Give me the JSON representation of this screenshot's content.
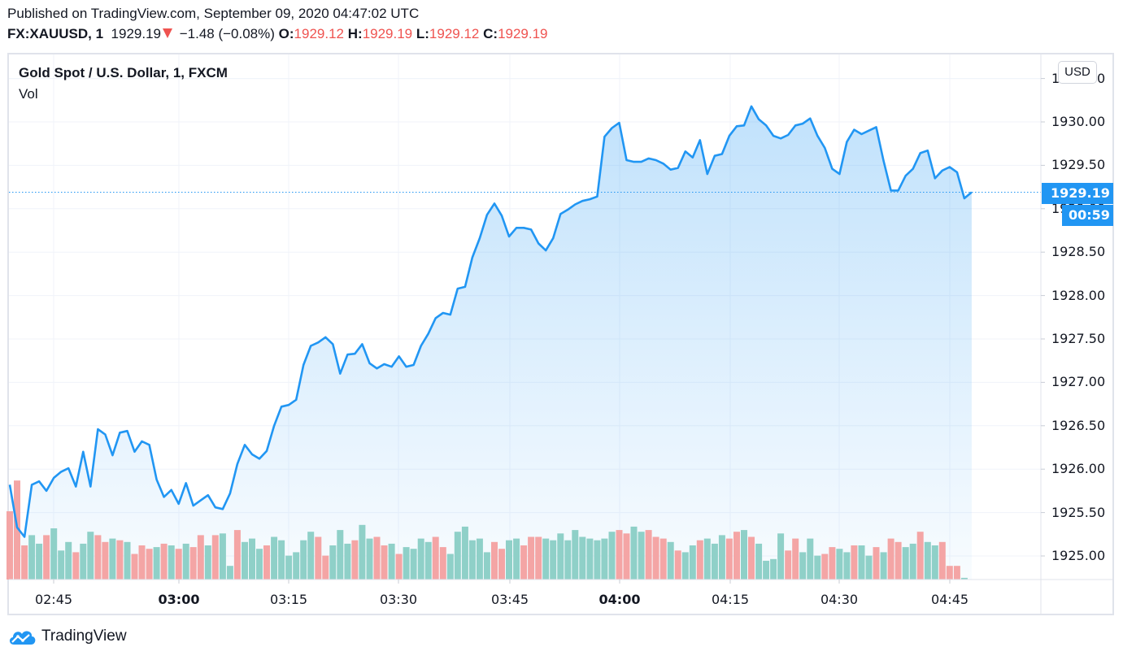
{
  "header": {
    "published": "Published on TradingView.com, September 09, 2020 04:47:02 UTC",
    "symbol": "FX:XAUUSD, 1",
    "last": "1929.19",
    "change": "−1.48 (−0.08%)",
    "change_direction": "down-triangle-icon",
    "o_label": "O:",
    "o": "1929.12",
    "h_label": "H:",
    "h": "1929.19",
    "l_label": "L:",
    "l": "1929.12",
    "c_label": "C:",
    "c": "1929.19"
  },
  "legend": {
    "title": "Gold Spot / U.S. Dollar, 1, FXCM",
    "vol": "Vol"
  },
  "price_axis": {
    "currency": "USD",
    "ticks": [
      "1930.50",
      "1930.00",
      "1929.50",
      "1929.00",
      "1928.50",
      "1928.00",
      "1927.50",
      "1927.00",
      "1926.50",
      "1926.00",
      "1925.50",
      "1925.00"
    ],
    "last_price_label": "1929.19",
    "countdown": "00:59"
  },
  "time_axis": {
    "ticks": [
      "02:45",
      "03:00",
      "03:15",
      "03:30",
      "03:45",
      "04:00",
      "04:15",
      "04:30",
      "04:45"
    ]
  },
  "footer": {
    "brand": "TradingView"
  },
  "colors": {
    "line": "#2196f3",
    "up_volume": "#8fd0c8",
    "down_volume": "#f4a5a5",
    "price_tag": "#2196f3",
    "change_red": "#ef5350"
  },
  "chart_data": {
    "type": "area",
    "title": "Gold Spot / U.S. Dollar, 1, FXCM",
    "xlabel": "",
    "ylabel": "USD",
    "ylim": [
      1924.7,
      1930.8
    ],
    "x_ticks": [
      "02:45",
      "03:00",
      "03:15",
      "03:30",
      "03:45",
      "04:00",
      "04:15",
      "04:30",
      "04:45"
    ],
    "y_ticks": [
      1925.0,
      1925.5,
      1926.0,
      1926.5,
      1927.0,
      1927.5,
      1928.0,
      1928.5,
      1929.0,
      1929.5,
      1930.0,
      1930.5
    ],
    "grid": true,
    "last_price": 1929.19,
    "series": [
      {
        "name": "Close",
        "values": [
          1925.82,
          1925.33,
          1925.22,
          1925.82,
          1925.86,
          1925.75,
          1925.9,
          1925.97,
          1926.01,
          1925.8,
          1926.2,
          1925.8,
          1926.46,
          1926.4,
          1926.16,
          1926.42,
          1926.44,
          1926.2,
          1926.32,
          1926.28,
          1925.88,
          1925.68,
          1925.76,
          1925.6,
          1925.84,
          1925.58,
          1925.64,
          1925.7,
          1925.56,
          1925.54,
          1925.72,
          1926.06,
          1926.28,
          1926.17,
          1926.12,
          1926.21,
          1926.5,
          1926.72,
          1926.74,
          1926.8,
          1927.2,
          1927.42,
          1927.46,
          1927.52,
          1927.44,
          1927.1,
          1927.32,
          1927.33,
          1927.44,
          1927.22,
          1927.16,
          1927.21,
          1927.18,
          1927.3,
          1927.18,
          1927.2,
          1927.42,
          1927.56,
          1927.74,
          1927.8,
          1927.78,
          1928.08,
          1928.1,
          1928.44,
          1928.66,
          1928.93,
          1929.06,
          1928.92,
          1928.68,
          1928.78,
          1928.78,
          1928.76,
          1928.6,
          1928.52,
          1928.66,
          1928.94,
          1928.99,
          1929.05,
          1929.09,
          1929.11,
          1929.14,
          1929.83,
          1929.93,
          1929.99,
          1929.56,
          1929.54,
          1929.54,
          1929.58,
          1929.56,
          1929.52,
          1929.45,
          1929.47,
          1929.66,
          1929.59,
          1929.79,
          1929.4,
          1929.61,
          1929.63,
          1929.84,
          1929.95,
          1929.96,
          1930.18,
          1930.03,
          1929.96,
          1929.84,
          1929.81,
          1929.85,
          1929.96,
          1929.98,
          1930.04,
          1929.84,
          1929.7,
          1929.46,
          1929.4,
          1929.77,
          1929.91,
          1929.86,
          1929.9,
          1929.94,
          1929.55,
          1929.21,
          1929.21,
          1929.38,
          1929.46,
          1929.64,
          1929.67,
          1929.35,
          1929.44,
          1929.48,
          1929.42,
          1929.12,
          1929.19
        ]
      },
      {
        "name": "Volume",
        "values": [
          40,
          58,
          20,
          26,
          21,
          26,
          30,
          17,
          22,
          16,
          21,
          28,
          26,
          22,
          24,
          23,
          22,
          15,
          20,
          18,
          19,
          21,
          20,
          18,
          21,
          19,
          26,
          20,
          26,
          27,
          8,
          29,
          22,
          24,
          18,
          20,
          25,
          23,
          14,
          16,
          23,
          28,
          25,
          14,
          20,
          29,
          21,
          23,
          32,
          24,
          25,
          20,
          21,
          15,
          19,
          18,
          24,
          22,
          25,
          19,
          15,
          28,
          31,
          23,
          24,
          16,
          22,
          18,
          23,
          24,
          20,
          25,
          25,
          24,
          23,
          27,
          23,
          29,
          25,
          24,
          23,
          24,
          28,
          29,
          27,
          31,
          28,
          29,
          25,
          24,
          22,
          17,
          16,
          20,
          23,
          24,
          21,
          26,
          24,
          28,
          29,
          25,
          21,
          11,
          12,
          27,
          17,
          24,
          16,
          24,
          14,
          15,
          19,
          18,
          16,
          20,
          20,
          14,
          19,
          16,
          24,
          22,
          19,
          21,
          28,
          22,
          20,
          22,
          8,
          8,
          1
        ]
      },
      {
        "name": "VolumeDirection",
        "values": [
          "down",
          "down",
          "down",
          "up",
          "up",
          "down",
          "up",
          "up",
          "up",
          "down",
          "up",
          "up",
          "down",
          "down",
          "up",
          "down",
          "up",
          "down",
          "down",
          "down",
          "up",
          "down",
          "up",
          "down",
          "up",
          "down",
          "down",
          "up",
          "down",
          "up",
          "up",
          "down",
          "up",
          "up",
          "up",
          "down",
          "up",
          "up",
          "up",
          "up",
          "up",
          "up",
          "down",
          "down",
          "up",
          "up",
          "up",
          "down",
          "up",
          "up",
          "down",
          "down",
          "up",
          "down",
          "up",
          "up",
          "up",
          "up",
          "down",
          "down",
          "up",
          "up",
          "up",
          "up",
          "up",
          "up",
          "down",
          "down",
          "up",
          "up",
          "down",
          "down",
          "down",
          "up",
          "up",
          "up",
          "up",
          "up",
          "up",
          "up",
          "up",
          "up",
          "up",
          "down",
          "down",
          "up",
          "up",
          "down",
          "down",
          "down",
          "up",
          "down",
          "up",
          "up",
          "down",
          "up",
          "up",
          "up",
          "down",
          "down",
          "up",
          "down",
          "up",
          "up",
          "up",
          "up",
          "down",
          "down",
          "up",
          "up",
          "up",
          "down",
          "down",
          "up",
          "up",
          "down",
          "up",
          "up",
          "down",
          "up",
          "down",
          "down",
          "up",
          "up",
          "down",
          "up",
          "up",
          "down",
          "down",
          "down",
          "up"
        ]
      }
    ]
  }
}
